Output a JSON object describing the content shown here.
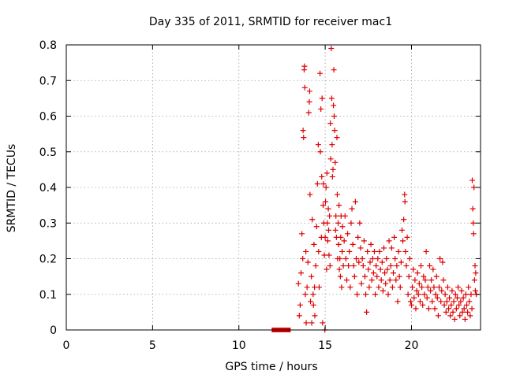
{
  "chart_data": {
    "type": "scatter",
    "title": "Day 335 of 2011, SRMTID for receiver mac1",
    "xlabel": "GPS time / hours",
    "ylabel": "SRMTID / TECUs",
    "xlim": [
      0,
      24
    ],
    "ylim": [
      0,
      0.8
    ],
    "x_ticks": [
      0,
      5,
      10,
      15,
      20
    ],
    "x_tick_labels": [
      "0",
      "5",
      "10",
      "15",
      "20"
    ],
    "y_ticks": [
      0,
      0.1,
      0.2,
      0.3,
      0.4,
      0.5,
      0.6,
      0.7,
      0.8
    ],
    "y_tick_labels": [
      "0",
      "0.1",
      "0.2",
      "0.3",
      "0.4",
      "0.5",
      "0.6",
      "0.7",
      "0.8"
    ],
    "grid": true,
    "marker": "+",
    "color": "#dd0000",
    "gap_bar": {
      "x_start": 11.9,
      "x_end": 13.0,
      "y": 0
    },
    "series": [
      {
        "name": "SRMTID",
        "points": [
          [
            13.45,
            0.13
          ],
          [
            13.5,
            0.04
          ],
          [
            13.55,
            0.07
          ],
          [
            13.6,
            0.16
          ],
          [
            13.65,
            0.27
          ],
          [
            13.7,
            0.2
          ],
          [
            13.72,
            0.56
          ],
          [
            13.75,
            0.54
          ],
          [
            13.78,
            0.73
          ],
          [
            13.8,
            0.74
          ],
          [
            13.82,
            0.68
          ],
          [
            13.85,
            0.1
          ],
          [
            13.88,
            0.22
          ],
          [
            13.9,
            0.02
          ],
          [
            13.95,
            0.12
          ],
          [
            14.0,
            0.19
          ],
          [
            14.05,
            0.61
          ],
          [
            14.08,
            0.64
          ],
          [
            14.1,
            0.67
          ],
          [
            14.12,
            0.38
          ],
          [
            14.15,
            0.08
          ],
          [
            14.2,
            0.15
          ],
          [
            14.22,
            0.02
          ],
          [
            14.25,
            0.31
          ],
          [
            14.3,
            0.1
          ],
          [
            14.32,
            0.07
          ],
          [
            14.35,
            0.24
          ],
          [
            14.38,
            0.12
          ],
          [
            14.4,
            0.04
          ],
          [
            14.45,
            0.18
          ],
          [
            14.5,
            0.29
          ],
          [
            14.55,
            0.41
          ],
          [
            14.6,
            0.52
          ],
          [
            14.62,
            0.22
          ],
          [
            14.65,
            0.12
          ],
          [
            14.7,
            0.72
          ],
          [
            14.72,
            0.5
          ],
          [
            14.75,
            0.62
          ],
          [
            14.78,
            0.26
          ],
          [
            14.8,
            0.43
          ],
          [
            14.82,
            0.65
          ],
          [
            14.85,
            0.02
          ],
          [
            14.88,
            0.35
          ],
          [
            14.9,
            0.41
          ],
          [
            14.92,
            0.3
          ],
          [
            14.95,
            0.21
          ],
          [
            14.98,
            0.0
          ],
          [
            15.0,
            0.26
          ],
          [
            15.02,
            0.36
          ],
          [
            15.05,
            0.4
          ],
          [
            15.08,
            0.17
          ],
          [
            15.1,
            0.44
          ],
          [
            15.12,
            0.3
          ],
          [
            15.15,
            0.25
          ],
          [
            15.18,
            0.34
          ],
          [
            15.2,
            0.28
          ],
          [
            15.22,
            0.21
          ],
          [
            15.25,
            0.32
          ],
          [
            15.28,
            0.18
          ],
          [
            15.3,
            0.58
          ],
          [
            15.32,
            0.48
          ],
          [
            15.35,
            0.79
          ],
          [
            15.38,
            0.65
          ],
          [
            15.4,
            0.52
          ],
          [
            15.42,
            0.43
          ],
          [
            15.45,
            0.45
          ],
          [
            15.48,
            0.63
          ],
          [
            15.5,
            0.73
          ],
          [
            15.52,
            0.6
          ],
          [
            15.55,
            0.56
          ],
          [
            15.58,
            0.47
          ],
          [
            15.6,
            0.28
          ],
          [
            15.62,
            0.32
          ],
          [
            15.65,
            0.26
          ],
          [
            15.68,
            0.54
          ],
          [
            15.7,
            0.38
          ],
          [
            15.72,
            0.2
          ],
          [
            15.75,
            0.3
          ],
          [
            15.78,
            0.24
          ],
          [
            15.8,
            0.35
          ],
          [
            15.82,
            0.17
          ],
          [
            15.85,
            0.2
          ],
          [
            15.88,
            0.15
          ],
          [
            15.9,
            0.26
          ],
          [
            15.92,
            0.32
          ],
          [
            15.95,
            0.12
          ],
          [
            15.98,
            0.22
          ],
          [
            16.0,
            0.29
          ],
          [
            16.05,
            0.18
          ],
          [
            16.1,
            0.25
          ],
          [
            16.15,
            0.32
          ],
          [
            16.2,
            0.2
          ],
          [
            16.25,
            0.14
          ],
          [
            16.3,
            0.27
          ],
          [
            16.35,
            0.18
          ],
          [
            16.4,
            0.22
          ],
          [
            16.45,
            0.12
          ],
          [
            16.5,
            0.3
          ],
          [
            16.55,
            0.34
          ],
          [
            16.6,
            0.24
          ],
          [
            16.65,
            0.18
          ],
          [
            16.7,
            0.15
          ],
          [
            16.75,
            0.36
          ],
          [
            16.8,
            0.2
          ],
          [
            16.85,
            0.1
          ],
          [
            16.9,
            0.26
          ],
          [
            16.95,
            0.19
          ],
          [
            17.0,
            0.3
          ],
          [
            17.05,
            0.23
          ],
          [
            17.1,
            0.13
          ],
          [
            17.15,
            0.2
          ],
          [
            17.2,
            0.18
          ],
          [
            17.25,
            0.25
          ],
          [
            17.3,
            0.15
          ],
          [
            17.35,
            0.1
          ],
          [
            17.4,
            0.05
          ],
          [
            17.45,
            0.22
          ],
          [
            17.5,
            0.17
          ],
          [
            17.55,
            0.12
          ],
          [
            17.6,
            0.19
          ],
          [
            17.65,
            0.24
          ],
          [
            17.7,
            0.14
          ],
          [
            17.75,
            0.2
          ],
          [
            17.8,
            0.16
          ],
          [
            17.85,
            0.22
          ],
          [
            17.9,
            0.1
          ],
          [
            17.95,
            0.18
          ],
          [
            18.0,
            0.15
          ],
          [
            18.05,
            0.2
          ],
          [
            18.1,
            0.12
          ],
          [
            18.15,
            0.22
          ],
          [
            18.2,
            0.17
          ],
          [
            18.25,
            0.14
          ],
          [
            18.3,
            0.19
          ],
          [
            18.35,
            0.11
          ],
          [
            18.4,
            0.23
          ],
          [
            18.45,
            0.16
          ],
          [
            18.5,
            0.13
          ],
          [
            18.55,
            0.2
          ],
          [
            18.6,
            0.17
          ],
          [
            18.65,
            0.1
          ],
          [
            18.7,
            0.25
          ],
          [
            18.75,
            0.14
          ],
          [
            18.8,
            0.18
          ],
          [
            18.85,
            0.23
          ],
          [
            18.9,
            0.12
          ],
          [
            18.95,
            0.16
          ],
          [
            19.0,
            0.26
          ],
          [
            19.05,
            0.2
          ],
          [
            19.1,
            0.14
          ],
          [
            19.15,
            0.18
          ],
          [
            19.2,
            0.08
          ],
          [
            19.25,
            0.22
          ],
          [
            19.3,
            0.15
          ],
          [
            19.35,
            0.12
          ],
          [
            19.4,
            0.19
          ],
          [
            19.45,
            0.28
          ],
          [
            19.5,
            0.25
          ],
          [
            19.55,
            0.31
          ],
          [
            19.6,
            0.38
          ],
          [
            19.62,
            0.36
          ],
          [
            19.65,
            0.22
          ],
          [
            19.7,
            0.18
          ],
          [
            19.75,
            0.26
          ],
          [
            19.8,
            0.1
          ],
          [
            19.85,
            0.15
          ],
          [
            19.9,
            0.2
          ],
          [
            19.95,
            0.08
          ],
          [
            20.0,
            0.07
          ],
          [
            20.05,
            0.12
          ],
          [
            20.1,
            0.17
          ],
          [
            20.15,
            0.09
          ],
          [
            20.2,
            0.14
          ],
          [
            20.25,
            0.06
          ],
          [
            20.3,
            0.11
          ],
          [
            20.35,
            0.16
          ],
          [
            20.4,
            0.1
          ],
          [
            20.45,
            0.13
          ],
          [
            20.5,
            0.08
          ],
          [
            20.55,
            0.18
          ],
          [
            20.6,
            0.12
          ],
          [
            20.65,
            0.07
          ],
          [
            20.7,
            0.15
          ],
          [
            20.75,
            0.1
          ],
          [
            20.8,
            0.14
          ],
          [
            20.85,
            0.22
          ],
          [
            20.9,
            0.09
          ],
          [
            20.95,
            0.12
          ],
          [
            21.0,
            0.06
          ],
          [
            21.05,
            0.18
          ],
          [
            21.1,
            0.11
          ],
          [
            21.15,
            0.14
          ],
          [
            21.2,
            0.08
          ],
          [
            21.25,
            0.17
          ],
          [
            21.3,
            0.12
          ],
          [
            21.35,
            0.06
          ],
          [
            21.4,
            0.1
          ],
          [
            21.45,
            0.15
          ],
          [
            21.5,
            0.09
          ],
          [
            21.55,
            0.04
          ],
          [
            21.6,
            0.12
          ],
          [
            21.65,
            0.2
          ],
          [
            21.7,
            0.08
          ],
          [
            21.75,
            0.11
          ],
          [
            21.8,
            0.19
          ],
          [
            21.85,
            0.14
          ],
          [
            21.9,
            0.07
          ],
          [
            21.95,
            0.1
          ],
          [
            22.0,
            0.05
          ],
          [
            22.05,
            0.08
          ],
          [
            22.1,
            0.12
          ],
          [
            22.15,
            0.06
          ],
          [
            22.2,
            0.09
          ],
          [
            22.25,
            0.04
          ],
          [
            22.3,
            0.07
          ],
          [
            22.35,
            0.11
          ],
          [
            22.4,
            0.05
          ],
          [
            22.45,
            0.08
          ],
          [
            22.5,
            0.03
          ],
          [
            22.55,
            0.1
          ],
          [
            22.6,
            0.06
          ],
          [
            22.65,
            0.09
          ],
          [
            22.7,
            0.12
          ],
          [
            22.75,
            0.07
          ],
          [
            22.8,
            0.04
          ],
          [
            22.85,
            0.08
          ],
          [
            22.9,
            0.11
          ],
          [
            22.95,
            0.05
          ],
          [
            23.0,
            0.09
          ],
          [
            23.05,
            0.06
          ],
          [
            23.1,
            0.03
          ],
          [
            23.15,
            0.1
          ],
          [
            23.2,
            0.07
          ],
          [
            23.25,
            0.05
          ],
          [
            23.3,
            0.12
          ],
          [
            23.35,
            0.08
          ],
          [
            23.4,
            0.04
          ],
          [
            23.45,
            0.1
          ],
          [
            23.5,
            0.06
          ],
          [
            23.52,
            0.42
          ],
          [
            23.55,
            0.34
          ],
          [
            23.58,
            0.3
          ],
          [
            23.6,
            0.27
          ],
          [
            23.62,
            0.4
          ],
          [
            23.65,
            0.14
          ],
          [
            23.68,
            0.18
          ],
          [
            23.7,
            0.11
          ],
          [
            23.72,
            0.16
          ],
          [
            23.75,
            0.1
          ]
        ]
      }
    ]
  }
}
